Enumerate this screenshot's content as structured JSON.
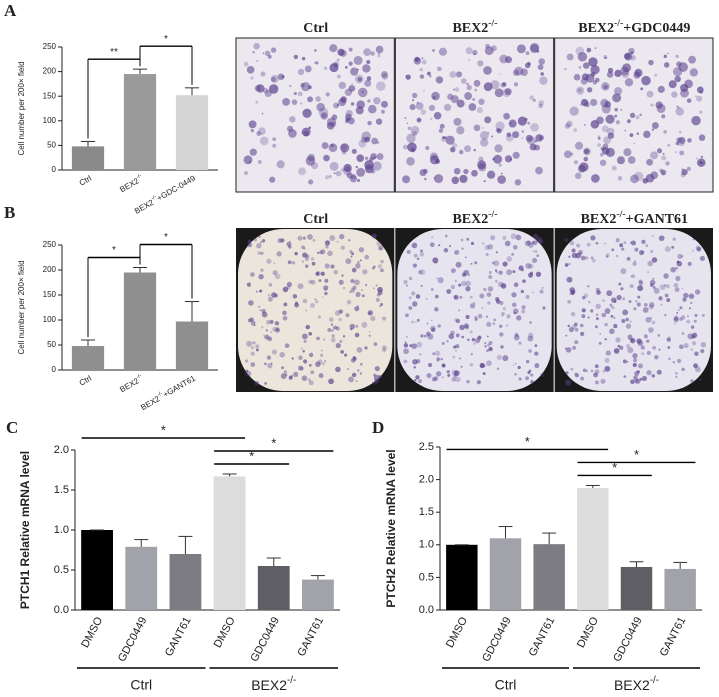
{
  "chart_data": [
    {
      "type": "bar",
      "label": "A",
      "ylabel": "Cell number per 200× field",
      "categories": [
        "Ctrl",
        {
          "base": "BEX2",
          "sup": "-/-"
        },
        {
          "base": "BEX2",
          "sup": "-/-",
          "rest": "+GDC-0449"
        }
      ],
      "series": [
        {
          "values": [
            48,
            195,
            152
          ],
          "errors": [
            10,
            10,
            15
          ],
          "colors": [
            "#8a8a8a",
            "#9a9a9a",
            "#d4d4d4"
          ]
        }
      ],
      "ylim": [
        0,
        250
      ],
      "yticks": [
        0,
        50,
        100,
        150,
        200,
        250
      ],
      "comparisons": [
        {
          "from": 0,
          "to": 1,
          "label": "**"
        },
        {
          "from": 1,
          "to": 2,
          "label": "*"
        }
      ],
      "image_titles": [
        "Ctrl",
        {
          "base": "BEX2",
          "sup": "-/-"
        },
        {
          "base": "BEX2",
          "sup": "-/-",
          "rest": "+GDC0449"
        }
      ]
    },
    {
      "type": "bar",
      "label": "B",
      "ylabel": "Cell number per 200× field",
      "categories": [
        "Ctrl",
        {
          "base": "BEX2",
          "sup": "-/-"
        },
        {
          "base": "BEX2",
          "sup": "-/-",
          "rest": "+GANT61"
        }
      ],
      "series": [
        {
          "values": [
            48,
            195,
            97
          ],
          "errors": [
            12,
            10,
            40
          ],
          "colors": [
            "#8f8f8f",
            "#8f8f8f",
            "#8f8f8f"
          ]
        }
      ],
      "ylim": [
        0,
        250
      ],
      "yticks": [
        0,
        50,
        100,
        150,
        200,
        250
      ],
      "comparisons": [
        {
          "from": 0,
          "to": 1,
          "label": "*"
        },
        {
          "from": 1,
          "to": 2,
          "label": "*"
        }
      ],
      "image_titles": [
        "Ctrl",
        {
          "base": "BEX2",
          "sup": "-/-"
        },
        {
          "base": "BEX2",
          "sup": "-/-",
          "rest": "+GANT61"
        }
      ]
    },
    {
      "type": "bar",
      "label": "C",
      "ylabel": "PTCH1 Relative mRNA level",
      "categories": [
        "DMSO",
        "GDC0449",
        "GANT61",
        "DMSO",
        "GDC0449",
        "GANT61"
      ],
      "series": [
        {
          "values": [
            1.0,
            0.79,
            0.7,
            1.67,
            0.55,
            0.38
          ],
          "errors": [
            0,
            0.09,
            0.22,
            0.03,
            0.1,
            0.05
          ],
          "colors": [
            "#000000",
            "#a2a2aa",
            "#7c7c82",
            "#dcdcdc",
            "#5e5e64",
            "#a2a2aa"
          ]
        }
      ],
      "ylim": [
        0,
        2
      ],
      "yticks": [
        {
          "value": 0,
          "label": "0.0"
        },
        0.5,
        {
          "value": 1,
          "label": "1.0"
        },
        1.5,
        {
          "value": 2,
          "label": "2.0"
        }
      ],
      "comparisons": [
        {
          "from": 3,
          "to": 4,
          "label": "*"
        },
        {
          "from": 3,
          "to": 5,
          "label": "*"
        },
        {
          "from": 0,
          "to": 3,
          "label": "*"
        }
      ],
      "groups": [
        {
          "label": "Ctrl",
          "span": [
            0,
            2
          ]
        },
        {
          "label": {
            "base": "BEX2",
            "sup": "-/-"
          },
          "span": [
            3,
            5
          ]
        }
      ]
    },
    {
      "type": "bar",
      "label": "D",
      "ylabel": "PTCH2 Relative mRNA level",
      "categories": [
        "DMSO",
        "GDC0449",
        "GANT61",
        "DMSO",
        "GDC0449",
        "GANT61"
      ],
      "series": [
        {
          "values": [
            1.0,
            1.1,
            1.01,
            1.87,
            0.66,
            0.63
          ],
          "errors": [
            0,
            0.18,
            0.17,
            0.04,
            0.08,
            0.1
          ],
          "colors": [
            "#000000",
            "#a2a2aa",
            "#7c7c82",
            "#dcdcdc",
            "#5e5e64",
            "#a2a2aa"
          ]
        }
      ],
      "ylim": [
        0,
        2.5
      ],
      "yticks": [
        {
          "value": 0,
          "label": "0.0"
        },
        0.5,
        {
          "value": 1,
          "label": "1.0"
        },
        1.5,
        {
          "value": 2,
          "label": "2.0"
        },
        2.5
      ],
      "comparisons": [
        {
          "from": 3,
          "to": 4,
          "label": "*"
        },
        {
          "from": 3,
          "to": 5,
          "label": "*"
        },
        {
          "from": 0,
          "to": 3,
          "label": "*"
        }
      ],
      "groups": [
        {
          "label": "Ctrl",
          "span": [
            0,
            2
          ]
        },
        {
          "label": {
            "base": "BEX2",
            "sup": "-/-"
          },
          "span": [
            3,
            5
          ]
        }
      ]
    }
  ]
}
